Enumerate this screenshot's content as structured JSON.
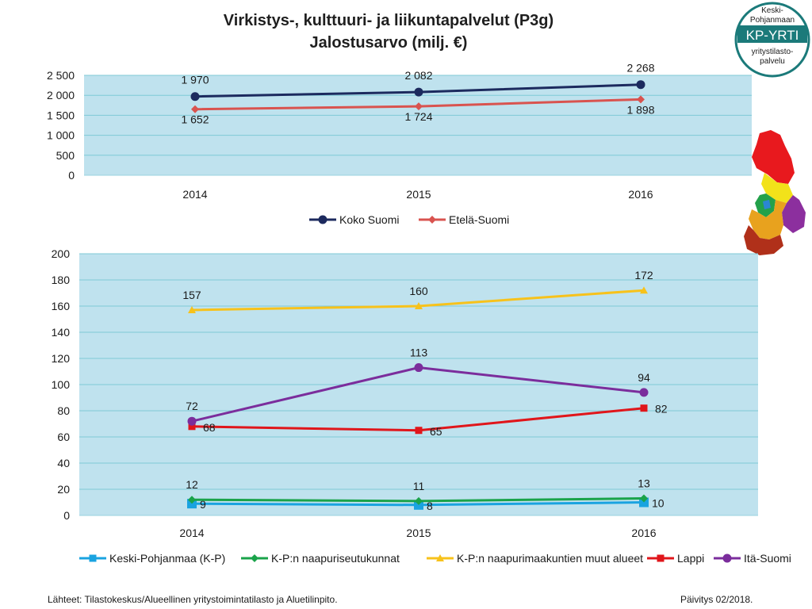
{
  "title": {
    "line1": "Virkistys-, kulttuuri- ja liikuntapalvelut (P3g)",
    "line2": "Jalostusarvo (milj. €)"
  },
  "logo": {
    "line1": "Keski-",
    "line2": "Pohjanmaan",
    "brand": "KP-YRTI",
    "line3": "yritystilasto-",
    "line4": "palvelu",
    "colors": {
      "ring": "#1b7a7a",
      "band": "#1b7a7a",
      "text": "#1a1a1a"
    }
  },
  "footer": {
    "source": "Lähteet: Tilastokeskus/Alueellinen yritystoimintatilasto ja Aluetilinpito.",
    "updated": "Päivitys 02/2018."
  },
  "chart_data": [
    {
      "type": "line",
      "x": [
        "2014",
        "2015",
        "2016"
      ],
      "ylim": [
        0,
        2500
      ],
      "yticks": [
        0,
        500,
        1000,
        1500,
        2000,
        2500
      ],
      "ytick_labels": [
        "0",
        "500",
        "1 000",
        "1 500",
        "2 000",
        "2 500"
      ],
      "grid": true,
      "legend_position": "bottom",
      "plot_background": "#bfe2ee",
      "series": [
        {
          "name": "Koko Suomi",
          "values": [
            1970,
            2082,
            2268
          ],
          "labels": [
            "1 970",
            "2 082",
            "2 268"
          ],
          "color": "#1c2a5e",
          "marker": "circle",
          "label_pos": "above"
        },
        {
          "name": "Etelä-Suomi",
          "values": [
            1652,
            1724,
            1898
          ],
          "labels": [
            "1 652",
            "1 724",
            "1 898"
          ],
          "color": "#d9534f",
          "marker": "diamond",
          "label_pos": "below"
        }
      ]
    },
    {
      "type": "line",
      "x": [
        "2014",
        "2015",
        "2016"
      ],
      "ylim": [
        0,
        200
      ],
      "yticks": [
        0,
        20,
        40,
        60,
        80,
        100,
        120,
        140,
        160,
        180,
        200
      ],
      "ytick_labels": [
        "0",
        "20",
        "40",
        "60",
        "80",
        "100",
        "120",
        "140",
        "160",
        "180",
        "200"
      ],
      "grid": true,
      "legend_position": "bottom",
      "plot_background": "#bfe2ee",
      "series": [
        {
          "name": "Keski-Pohjanmaa (K-P)",
          "values": [
            9,
            8,
            10
          ],
          "labels": [
            "9",
            "8",
            "10"
          ],
          "color": "#1aa3e0",
          "marker": "square-big",
          "label_pos": "right"
        },
        {
          "name": "K-P:n naapuriseutukunnat",
          "values": [
            12,
            11,
            13
          ],
          "labels": [
            "12",
            "11",
            "13"
          ],
          "color": "#1aa34a",
          "marker": "diamond",
          "label_pos": "above"
        },
        {
          "name": "K-P:n naapurimaakuntien muut alueet",
          "values": [
            157,
            160,
            172
          ],
          "labels": [
            "157",
            "160",
            "172"
          ],
          "color": "#f7c21b",
          "marker": "triangle",
          "label_pos": "above"
        },
        {
          "name": "Lappi",
          "values": [
            68,
            65,
            82
          ],
          "labels": [
            "68",
            "65",
            "82"
          ],
          "color": "#e0161b",
          "marker": "square",
          "label_pos": "right"
        },
        {
          "name": "Itä-Suomi",
          "values": [
            72,
            113,
            94
          ],
          "labels": [
            "72",
            "113",
            "94"
          ],
          "color": "#7b2d9c",
          "marker": "circle",
          "label_pos": "above"
        }
      ]
    }
  ]
}
